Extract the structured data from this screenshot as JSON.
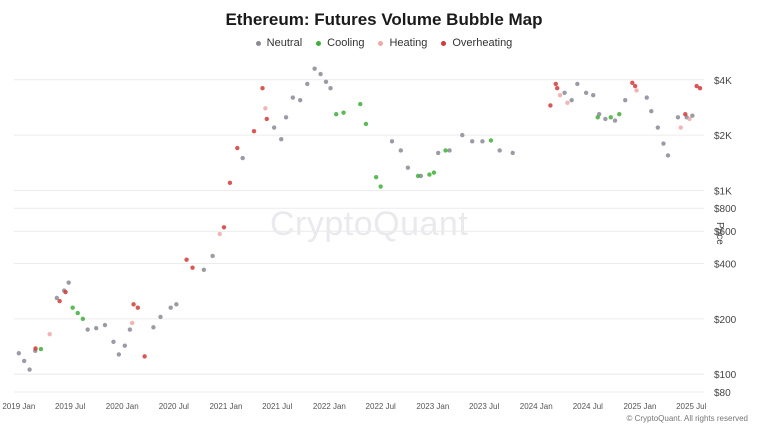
{
  "chart_data": {
    "type": "scatter",
    "title": "Ethereum: Futures Volume Bubble Map",
    "xlabel": "",
    "ylabel": "Price",
    "y_scale": "log",
    "ylim": [
      80,
      5000
    ],
    "xlim": [
      "2018-12-15",
      "2025-08-15"
    ],
    "x_ticks": [
      {
        "date": "2019-01-01",
        "label": "2019 Jan"
      },
      {
        "date": "2019-07-01",
        "label": "2019 Jul"
      },
      {
        "date": "2020-01-01",
        "label": "2020 Jan"
      },
      {
        "date": "2020-07-01",
        "label": "2020 Jul"
      },
      {
        "date": "2021-01-01",
        "label": "2021 Jan"
      },
      {
        "date": "2021-07-01",
        "label": "2021 Jul"
      },
      {
        "date": "2022-01-01",
        "label": "2022 Jan"
      },
      {
        "date": "2022-07-01",
        "label": "2022 Jul"
      },
      {
        "date": "2023-01-01",
        "label": "2023 Jan"
      },
      {
        "date": "2023-07-01",
        "label": "2023 Jul"
      },
      {
        "date": "2024-01-01",
        "label": "2024 Jan"
      },
      {
        "date": "2024-07-01",
        "label": "2024 Jul"
      },
      {
        "date": "2025-01-01",
        "label": "2025 Jan"
      },
      {
        "date": "2025-07-01",
        "label": "2025 Jul"
      }
    ],
    "y_ticks": [
      {
        "value": 4000,
        "label": "$4K"
      },
      {
        "value": 2000,
        "label": "$2K"
      },
      {
        "value": 1000,
        "label": "$1K"
      },
      {
        "value": 800,
        "label": "$800"
      },
      {
        "value": 600,
        "label": "$600"
      },
      {
        "value": 400,
        "label": "$400"
      },
      {
        "value": 200,
        "label": "$200"
      },
      {
        "value": 100,
        "label": "$100"
      },
      {
        "value": 80,
        "label": "$80"
      }
    ],
    "grid": true,
    "legend_position": "top-center",
    "series": [
      {
        "name": "Neutral",
        "color": "#8a8a96",
        "points": [
          {
            "x": "2019-01-01",
            "y": 130
          },
          {
            "x": "2019-01-20",
            "y": 118
          },
          {
            "x": "2019-02-08",
            "y": 106
          },
          {
            "x": "2019-02-28",
            "y": 134
          },
          {
            "x": "2019-05-15",
            "y": 260
          },
          {
            "x": "2019-06-10",
            "y": 285
          },
          {
            "x": "2019-06-26",
            "y": 315
          },
          {
            "x": "2019-09-01",
            "y": 175
          },
          {
            "x": "2019-10-01",
            "y": 178
          },
          {
            "x": "2019-11-01",
            "y": 185
          },
          {
            "x": "2019-12-01",
            "y": 150
          },
          {
            "x": "2019-12-20",
            "y": 128
          },
          {
            "x": "2020-01-10",
            "y": 143
          },
          {
            "x": "2020-01-28",
            "y": 175
          },
          {
            "x": "2020-04-20",
            "y": 180
          },
          {
            "x": "2020-05-15",
            "y": 205
          },
          {
            "x": "2020-06-20",
            "y": 230
          },
          {
            "x": "2020-07-10",
            "y": 240
          },
          {
            "x": "2020-10-15",
            "y": 370
          },
          {
            "x": "2020-11-15",
            "y": 440
          },
          {
            "x": "2021-03-01",
            "y": 1500
          },
          {
            "x": "2021-06-20",
            "y": 2200
          },
          {
            "x": "2021-07-15",
            "y": 1900
          },
          {
            "x": "2021-08-01",
            "y": 2500
          },
          {
            "x": "2021-08-25",
            "y": 3200
          },
          {
            "x": "2021-09-20",
            "y": 3100
          },
          {
            "x": "2021-10-15",
            "y": 3800
          },
          {
            "x": "2021-11-10",
            "y": 4600
          },
          {
            "x": "2021-12-01",
            "y": 4300
          },
          {
            "x": "2021-12-20",
            "y": 3900
          },
          {
            "x": "2022-01-05",
            "y": 3600
          },
          {
            "x": "2022-08-10",
            "y": 1850
          },
          {
            "x": "2022-09-10",
            "y": 1650
          },
          {
            "x": "2022-10-05",
            "y": 1330
          },
          {
            "x": "2022-11-20",
            "y": 1200
          },
          {
            "x": "2023-01-20",
            "y": 1600
          },
          {
            "x": "2023-03-01",
            "y": 1650
          },
          {
            "x": "2023-04-15",
            "y": 2000
          },
          {
            "x": "2023-05-20",
            "y": 1850
          },
          {
            "x": "2023-06-25",
            "y": 1850
          },
          {
            "x": "2023-08-25",
            "y": 1650
          },
          {
            "x": "2023-10-10",
            "y": 1600
          },
          {
            "x": "2024-04-10",
            "y": 3400
          },
          {
            "x": "2024-05-05",
            "y": 3100
          },
          {
            "x": "2024-05-25",
            "y": 3800
          },
          {
            "x": "2024-06-25",
            "y": 3400
          },
          {
            "x": "2024-07-20",
            "y": 3300
          },
          {
            "x": "2024-08-10",
            "y": 2600
          },
          {
            "x": "2024-09-01",
            "y": 2450
          },
          {
            "x": "2024-10-05",
            "y": 2400
          },
          {
            "x": "2024-11-10",
            "y": 3100
          },
          {
            "x": "2025-01-25",
            "y": 3200
          },
          {
            "x": "2025-02-10",
            "y": 2700
          },
          {
            "x": "2025-03-05",
            "y": 2200
          },
          {
            "x": "2025-03-25",
            "y": 1800
          },
          {
            "x": "2025-04-10",
            "y": 1550
          },
          {
            "x": "2025-05-15",
            "y": 2500
          },
          {
            "x": "2025-06-15",
            "y": 2500
          },
          {
            "x": "2025-07-05",
            "y": 2550
          }
        ]
      },
      {
        "name": "Cooling",
        "color": "#3fae3a",
        "points": [
          {
            "x": "2019-07-10",
            "y": 230
          },
          {
            "x": "2019-07-28",
            "y": 215
          },
          {
            "x": "2019-08-15",
            "y": 200
          },
          {
            "x": "2019-03-20",
            "y": 137
          },
          {
            "x": "2022-01-25",
            "y": 2600
          },
          {
            "x": "2022-02-20",
            "y": 2650
          },
          {
            "x": "2022-04-20",
            "y": 2950
          },
          {
            "x": "2022-05-10",
            "y": 2300
          },
          {
            "x": "2022-06-15",
            "y": 1180
          },
          {
            "x": "2022-07-01",
            "y": 1050
          },
          {
            "x": "2022-11-10",
            "y": 1200
          },
          {
            "x": "2022-12-20",
            "y": 1220
          },
          {
            "x": "2023-01-05",
            "y": 1250
          },
          {
            "x": "2023-02-15",
            "y": 1650
          },
          {
            "x": "2023-07-25",
            "y": 1870
          },
          {
            "x": "2024-08-05",
            "y": 2500
          },
          {
            "x": "2024-09-20",
            "y": 2500
          },
          {
            "x": "2024-10-20",
            "y": 2600
          }
        ]
      },
      {
        "name": "Heating",
        "color": "#f0a8a8",
        "points": [
          {
            "x": "2019-04-20",
            "y": 165
          },
          {
            "x": "2020-02-05",
            "y": 190
          },
          {
            "x": "2020-12-10",
            "y": 580
          },
          {
            "x": "2021-05-20",
            "y": 2800
          },
          {
            "x": "2024-03-25",
            "y": 3300
          },
          {
            "x": "2024-04-20",
            "y": 3000
          },
          {
            "x": "2024-12-20",
            "y": 3500
          },
          {
            "x": "2025-05-25",
            "y": 2200
          },
          {
            "x": "2025-06-25",
            "y": 2450
          }
        ]
      },
      {
        "name": "Overheating",
        "color": "#d23a3a",
        "points": [
          {
            "x": "2019-03-01",
            "y": 138
          },
          {
            "x": "2019-05-25",
            "y": 250
          },
          {
            "x": "2019-06-15",
            "y": 280
          },
          {
            "x": "2020-02-10",
            "y": 240
          },
          {
            "x": "2020-02-25",
            "y": 230
          },
          {
            "x": "2020-03-20",
            "y": 125
          },
          {
            "x": "2020-08-15",
            "y": 420
          },
          {
            "x": "2020-09-05",
            "y": 380
          },
          {
            "x": "2020-12-25",
            "y": 630
          },
          {
            "x": "2021-01-15",
            "y": 1100
          },
          {
            "x": "2021-02-10",
            "y": 1700
          },
          {
            "x": "2021-04-10",
            "y": 2100
          },
          {
            "x": "2021-05-10",
            "y": 3600
          },
          {
            "x": "2021-05-25",
            "y": 2450
          },
          {
            "x": "2024-02-20",
            "y": 2900
          },
          {
            "x": "2024-03-10",
            "y": 3800
          },
          {
            "x": "2024-03-15",
            "y": 3600
          },
          {
            "x": "2024-12-05",
            "y": 3850
          },
          {
            "x": "2024-12-15",
            "y": 3700
          },
          {
            "x": "2025-06-10",
            "y": 2600
          },
          {
            "x": "2025-07-20",
            "y": 3700
          },
          {
            "x": "2025-08-01",
            "y": 3600
          }
        ]
      }
    ]
  },
  "watermark": "CryptoQuant",
  "footer": "© CryptoQuant. All rights reserved"
}
